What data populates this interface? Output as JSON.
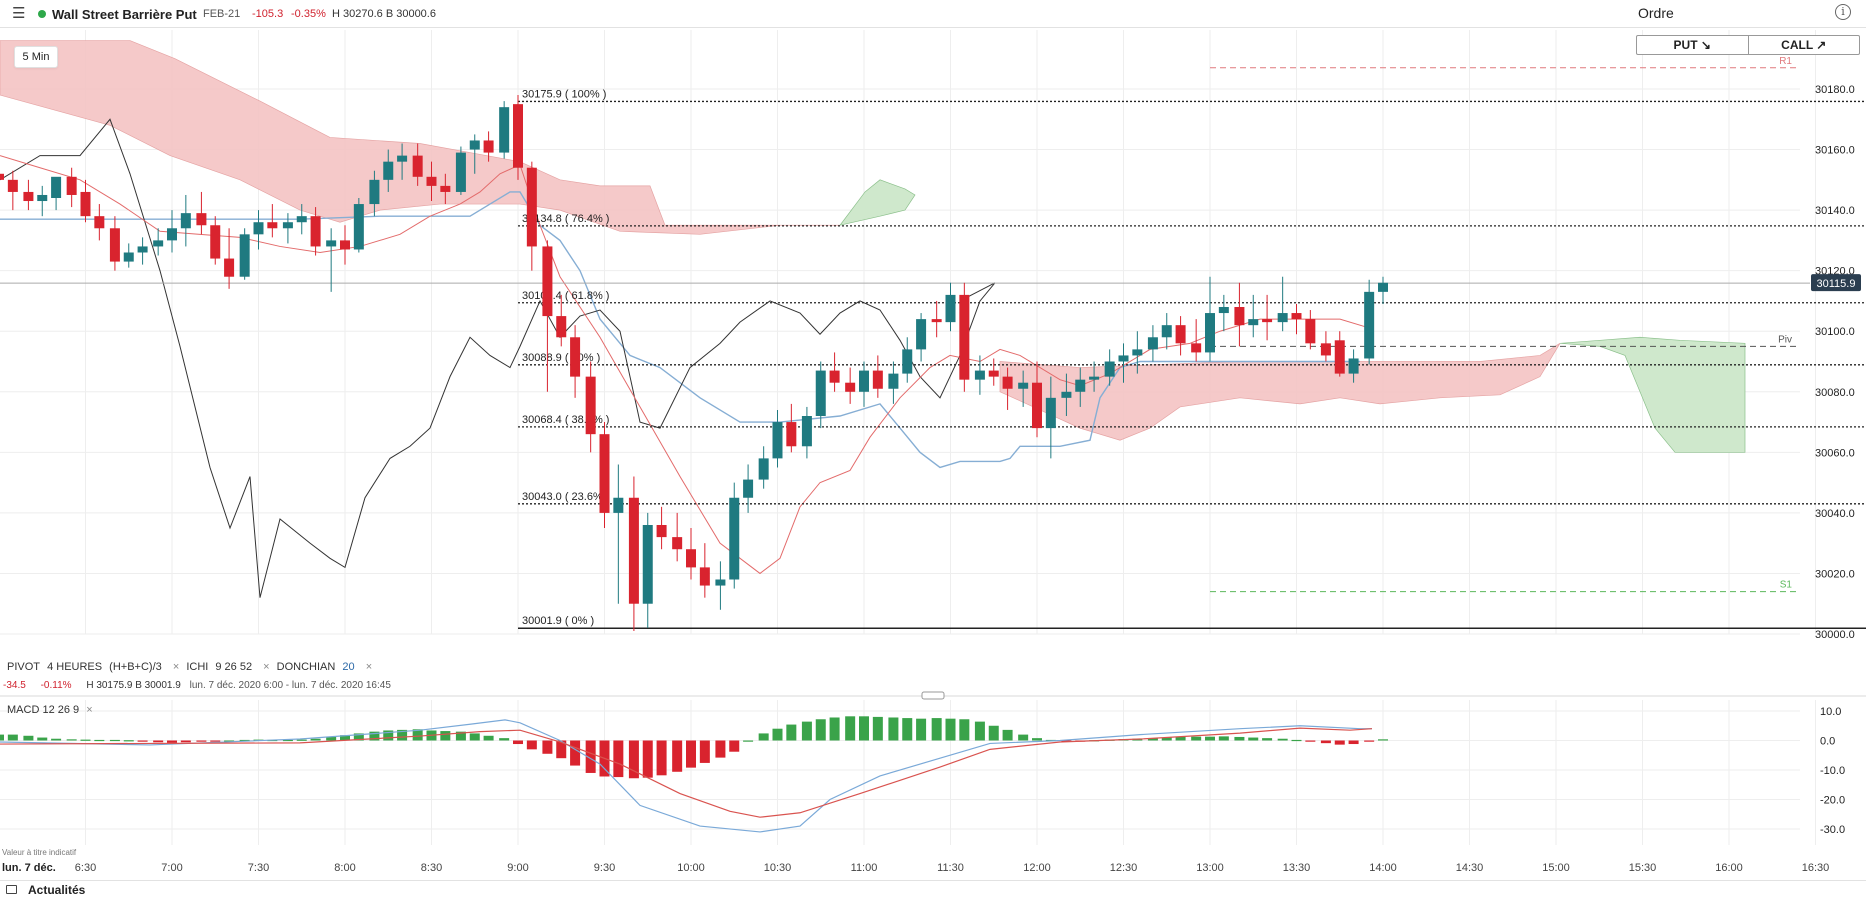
{
  "header": {
    "instrument": "Wall Street Barrière Put",
    "expiry": "FEB-21",
    "change": "-105.3",
    "change_pct": "-0.35%",
    "high_low": "H 30270.6  B 30000.6",
    "order_label": "Ordre",
    "info_label": "i",
    "status_color": "#2ea84a"
  },
  "toolbar": {
    "timeframe": "5 Min"
  },
  "trade": {
    "put_label": "PUT ↘",
    "call_label": "CALL ↗"
  },
  "colors": {
    "up": "#1f7a80",
    "down": "#d9232e",
    "cloud_bear": "#f4c4c4",
    "cloud_bull": "#cfe8cc",
    "macd_up": "#3aa34a",
    "macd_down": "#d9232e"
  },
  "legend": {
    "pivot": "PIVOT",
    "pivot_params": "4 HEURES",
    "pivot_formula": "(H+B+C)/3",
    "ichi": "ICHI",
    "ichi_params": "9  26  52",
    "donchian": "DONCHIAN",
    "donchian_param": "20",
    "close_icon": "×",
    "last_change": "-34.5",
    "last_change_pct": "-0.11%",
    "last_hb": "H 30175.9   B 30001.9",
    "range": "lun. 7 déc. 2020 6:00 - lun. 7 déc. 2020 16:45"
  },
  "macd_legend": {
    "name": "MACD",
    "params": "12  26  9",
    "close_icon": "×"
  },
  "footer": {
    "note": "Valeur à titre indicatif",
    "date": "lun. 7 déc.",
    "news": "Actualités"
  },
  "chart_data": {
    "type": "candlestick",
    "title": "Wall Street Barrière Put",
    "timeframe": "5 Min",
    "x_ticks": [
      "6:30",
      "7:00",
      "7:30",
      "8:00",
      "8:30",
      "9:00",
      "9:30",
      "10:00",
      "10:30",
      "11:00",
      "11:30",
      "12:00",
      "12:30",
      "13:00",
      "13:30",
      "14:00",
      "14:30",
      "15:00",
      "15:30",
      "16:00",
      "16:30"
    ],
    "y_ticks": [
      "30180.0",
      "30160.0",
      "30140.0",
      "30120.0",
      "30100.0",
      "30080.0",
      "30060.0",
      "30040.0",
      "30020.0",
      "30000.0"
    ],
    "ylim": [
      29998,
      30199
    ],
    "current_price": "30115.9",
    "fibonacci": [
      {
        "level": 30175.9,
        "label": "30175.9 ( 100% )"
      },
      {
        "level": 30134.8,
        "label": "30134.8 ( 76.4% )"
      },
      {
        "level": 30109.4,
        "label": "30109.4 ( 61.8% )"
      },
      {
        "level": 30088.9,
        "label": "30088.9 ( 50% )"
      },
      {
        "level": 30068.4,
        "label": "30068.4 ( 38.2% )"
      },
      {
        "level": 30043.0,
        "label": "30043.0 ( 23.6% )"
      },
      {
        "level": 30001.9,
        "label": "30001.9 ( 0% )"
      }
    ],
    "pivots": [
      {
        "name": "R1",
        "level": 30187
      },
      {
        "name": "Piv",
        "level": 30095
      },
      {
        "name": "S1",
        "level": 30014
      }
    ],
    "candles": [
      [
        6.0,
        30152,
        30158,
        30145,
        30150
      ],
      [
        6.08,
        30150,
        30153,
        30140,
        30146
      ],
      [
        6.17,
        30146,
        30150,
        30140,
        30143
      ],
      [
        6.25,
        30143,
        30148,
        30138,
        30145
      ],
      [
        6.33,
        30144,
        30149,
        30140,
        30151
      ],
      [
        6.42,
        30151,
        30154,
        30141,
        30145
      ],
      [
        6.5,
        30146,
        30150,
        30136,
        30138
      ],
      [
        6.58,
        30138,
        30142,
        30130,
        30134
      ],
      [
        6.67,
        30134,
        30138,
        30120,
        30123
      ],
      [
        6.75,
        30123,
        30129,
        30121,
        30126
      ],
      [
        6.83,
        30126,
        30131,
        30122,
        30128
      ],
      [
        6.92,
        30128,
        30134,
        30125,
        30130
      ],
      [
        7.0,
        30130,
        30140,
        30126,
        30134
      ],
      [
        7.08,
        30134,
        30145,
        30128,
        30139
      ],
      [
        7.17,
        30139,
        30146,
        30132,
        30135
      ],
      [
        7.25,
        30135,
        30138,
        30122,
        30124
      ],
      [
        7.33,
        30124,
        30134,
        30114,
        30118
      ],
      [
        7.42,
        30118,
        30134,
        30117,
        30132
      ],
      [
        7.5,
        30132,
        30140,
        30127,
        30136
      ],
      [
        7.58,
        30136,
        30142,
        30131,
        30134
      ],
      [
        7.67,
        30134,
        30139,
        30129,
        30136
      ],
      [
        7.75,
        30136,
        30142,
        30132,
        30138
      ],
      [
        7.83,
        30138,
        30141,
        30125,
        30128
      ],
      [
        7.92,
        30128,
        30134,
        30113,
        30130
      ],
      [
        8.0,
        30130,
        30135,
        30122,
        30127
      ],
      [
        8.08,
        30127,
        30144,
        30126,
        30142
      ],
      [
        8.17,
        30142,
        30153,
        30138,
        30150
      ],
      [
        8.25,
        30150,
        30160,
        30146,
        30156
      ],
      [
        8.33,
        30156,
        30162,
        30150,
        30158
      ],
      [
        8.42,
        30158,
        30162,
        30148,
        30151
      ],
      [
        8.5,
        30151,
        30156,
        30143,
        30148
      ],
      [
        8.58,
        30148,
        30152,
        30142,
        30146
      ],
      [
        8.67,
        30146,
        30161,
        30145,
        30159
      ],
      [
        8.75,
        30160,
        30165,
        30152,
        30163
      ],
      [
        8.83,
        30163,
        30166,
        30156,
        30159
      ],
      [
        8.92,
        30159,
        30176,
        30157,
        30174
      ],
      [
        9.0,
        30175,
        30178,
        30150,
        30154
      ],
      [
        9.08,
        30154,
        30156,
        30120,
        30128
      ],
      [
        9.17,
        30128,
        30130,
        30080,
        30105
      ],
      [
        9.25,
        30105,
        30112,
        30095,
        30098
      ],
      [
        9.33,
        30098,
        30102,
        30078,
        30085
      ],
      [
        9.42,
        30085,
        30090,
        30060,
        30066
      ],
      [
        9.5,
        30066,
        30070,
        30035,
        30040
      ],
      [
        9.58,
        30040,
        30056,
        30010,
        30045
      ],
      [
        9.67,
        30045,
        30052,
        30001,
        30010
      ],
      [
        9.75,
        30010,
        30040,
        30002,
        30036
      ],
      [
        9.83,
        30036,
        30042,
        30028,
        30032
      ],
      [
        9.92,
        30032,
        30040,
        30024,
        30028
      ],
      [
        10.0,
        30028,
        30035,
        30018,
        30022
      ],
      [
        10.08,
        30022,
        30030,
        30012,
        30016
      ],
      [
        10.17,
        30016,
        30024,
        30008,
        30018
      ],
      [
        10.25,
        30018,
        30050,
        30015,
        30045
      ],
      [
        10.33,
        30045,
        30056,
        30040,
        30051
      ],
      [
        10.42,
        30051,
        30062,
        30048,
        30058
      ],
      [
        10.5,
        30058,
        30074,
        30055,
        30070
      ],
      [
        10.58,
        30070,
        30076,
        30060,
        30062
      ],
      [
        10.67,
        30062,
        30075,
        30058,
        30072
      ],
      [
        10.75,
        30072,
        30090,
        30068,
        30087
      ],
      [
        10.83,
        30087,
        30093,
        30080,
        30083
      ],
      [
        10.92,
        30083,
        30088,
        30076,
        30080
      ],
      [
        11.0,
        30080,
        30090,
        30075,
        30087
      ],
      [
        11.08,
        30087,
        30092,
        30078,
        30081
      ],
      [
        11.17,
        30081,
        30090,
        30076,
        30086
      ],
      [
        11.25,
        30086,
        30098,
        30083,
        30094
      ],
      [
        11.33,
        30094,
        30106,
        30090,
        30104
      ],
      [
        11.42,
        30104,
        30110,
        30098,
        30103
      ],
      [
        11.5,
        30103,
        30116,
        30100,
        30112
      ],
      [
        11.58,
        30112,
        30116,
        30080,
        30084
      ],
      [
        11.67,
        30084,
        30092,
        30079,
        30087
      ],
      [
        11.75,
        30087,
        30091,
        30082,
        30085
      ],
      [
        11.83,
        30085,
        30088,
        30074,
        30081
      ],
      [
        11.92,
        30081,
        30087,
        30075,
        30083
      ],
      [
        12.0,
        30083,
        30090,
        30065,
        30068
      ],
      [
        12.08,
        30068,
        30085,
        30058,
        30078
      ],
      [
        12.17,
        30078,
        30086,
        30072,
        30080
      ],
      [
        12.25,
        30080,
        30088,
        30075,
        30084
      ],
      [
        12.33,
        30084,
        30090,
        30080,
        30085
      ],
      [
        12.42,
        30085,
        30094,
        30082,
        30090
      ],
      [
        12.5,
        30090,
        30096,
        30083,
        30092
      ],
      [
        12.58,
        30092,
        30100,
        30086,
        30094
      ],
      [
        12.67,
        30094,
        30102,
        30090,
        30098
      ],
      [
        12.75,
        30098,
        30106,
        30094,
        30102
      ],
      [
        12.83,
        30102,
        30105,
        30092,
        30096
      ],
      [
        12.92,
        30096,
        30104,
        30090,
        30093
      ],
      [
        13.0,
        30093,
        30118,
        30090,
        30106
      ],
      [
        13.08,
        30106,
        30112,
        30100,
        30108
      ],
      [
        13.17,
        30108,
        30116,
        30095,
        30102
      ],
      [
        13.25,
        30102,
        30112,
        30098,
        30104
      ],
      [
        13.33,
        30104,
        30112,
        30097,
        30103
      ],
      [
        13.42,
        30103,
        30118,
        30100,
        30106
      ],
      [
        13.5,
        30106,
        30109,
        30099,
        30104
      ],
      [
        13.58,
        30104,
        30107,
        30094,
        30096
      ],
      [
        13.67,
        30096,
        30100,
        30090,
        30092
      ],
      [
        13.75,
        30097,
        30100,
        30085,
        30086
      ],
      [
        13.83,
        30086,
        30094,
        30083,
        30091
      ],
      [
        13.92,
        30091,
        30117,
        30089,
        30113
      ],
      [
        14.0,
        30113,
        30118,
        30109,
        30116
      ]
    ],
    "macd_yticks": [
      "10.0",
      "0.0",
      "-10.0",
      "-20.0",
      "-30.0"
    ],
    "macd_ylim": [
      -35,
      13
    ]
  }
}
